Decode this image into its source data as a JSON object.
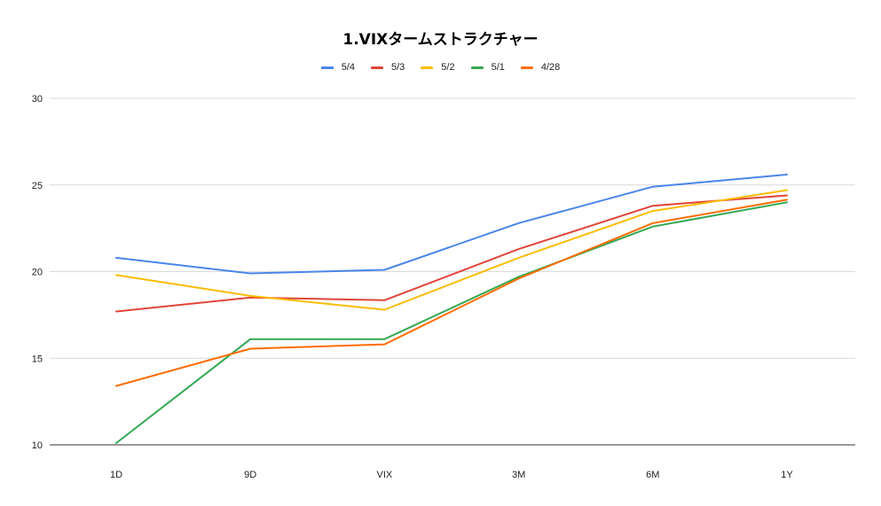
{
  "chart_data": {
    "type": "line",
    "title": "1.VIXタームストラクチャー",
    "xlabel": "",
    "ylabel": "",
    "categories": [
      "1D",
      "9D",
      "VIX",
      "3M",
      "6M",
      "1Y"
    ],
    "ylim": [
      10,
      30
    ],
    "yticks": [
      "10",
      "15",
      "20",
      "25",
      "30"
    ],
    "grid": true,
    "legend_position": "top",
    "series": [
      {
        "name": "5/4",
        "color": "#4a86e8",
        "values": [
          20.8,
          19.9,
          20.1,
          22.8,
          24.9,
          25.6
        ]
      },
      {
        "name": "5/3",
        "color": "#e0453a",
        "values": [
          17.7,
          18.5,
          18.35,
          21.3,
          23.8,
          24.4
        ]
      },
      {
        "name": "5/2",
        "color": "#fbbc04",
        "values": [
          19.8,
          18.6,
          17.8,
          20.8,
          23.5,
          24.7
        ]
      },
      {
        "name": "5/1",
        "color": "#34a853",
        "values": [
          10.1,
          16.1,
          16.1,
          19.7,
          22.6,
          24.0
        ]
      },
      {
        "name": "4/28",
        "color": "#ff6d01",
        "values": [
          13.4,
          15.55,
          15.8,
          19.6,
          22.8,
          24.15
        ]
      }
    ]
  }
}
